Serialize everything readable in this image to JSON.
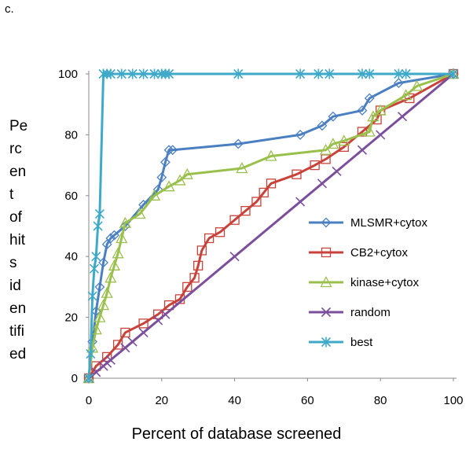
{
  "panel_label": "c.",
  "chart_data": {
    "type": "line",
    "title": "",
    "xlabel": "Percent of database screened",
    "ylabel": "Percent of hits identified",
    "ylabel_lines": [
      "Pe",
      "rc",
      "en",
      "t",
      "of",
      "hit",
      "s",
      "id",
      "en",
      "tifi",
      "ed"
    ],
    "xlim": [
      0,
      100
    ],
    "ylim": [
      0,
      100
    ],
    "xticks": [
      0,
      20,
      40,
      60,
      80,
      100
    ],
    "yticks": [
      0,
      20,
      40,
      60,
      80,
      100
    ],
    "grid": false,
    "legend_position": "right",
    "series": [
      {
        "name": "MLSMR+cytox",
        "color": "#4a7fc1",
        "marker": "diamond",
        "x": [
          0,
          1,
          2,
          3,
          4,
          5,
          6,
          7,
          10,
          15,
          19,
          20,
          21,
          22,
          23,
          41,
          58,
          64,
          67,
          75,
          77,
          85,
          100
        ],
        "y": [
          0,
          12,
          22,
          30,
          38,
          44,
          46,
          47,
          50,
          57,
          62,
          66,
          71,
          75,
          75,
          77,
          80,
          83,
          86,
          88,
          92,
          97,
          100
        ]
      },
      {
        "name": "CB2+cytox",
        "color": "#c8423a",
        "marker": "square",
        "x": [
          0,
          2,
          5,
          8,
          10,
          15,
          19,
          22,
          25,
          27,
          29,
          30,
          31,
          33,
          36,
          40,
          43,
          46,
          48,
          50,
          57,
          62,
          65,
          70,
          75,
          79,
          80,
          88,
          100
        ],
        "y": [
          0,
          4,
          7,
          11,
          15,
          18,
          21,
          24,
          26,
          30,
          33,
          37,
          42,
          46,
          48,
          52,
          55,
          58,
          61,
          64,
          67,
          70,
          72,
          76,
          81,
          85,
          88,
          92,
          100
        ]
      },
      {
        "name": "kinase+cytox",
        "color": "#9ac04c",
        "marker": "triangle",
        "x": [
          0,
          1,
          2,
          3,
          4,
          5,
          6,
          7,
          8,
          9,
          10,
          14,
          18,
          22,
          25,
          27,
          42,
          50,
          65,
          67,
          70,
          77,
          78,
          80,
          87,
          90,
          100
        ],
        "y": [
          0,
          10,
          16,
          20,
          24,
          28,
          33,
          37,
          41,
          46,
          51,
          54,
          60,
          63,
          65,
          67,
          69,
          73,
          75,
          77,
          78,
          81,
          86,
          88,
          93,
          96,
          100
        ]
      },
      {
        "name": "random",
        "color": "#7b4f9c",
        "marker": "x",
        "x": [
          0,
          2,
          4,
          5,
          6,
          10,
          12,
          15,
          19,
          21,
          40,
          58,
          64,
          68,
          75,
          80,
          86,
          100
        ],
        "y": [
          0,
          2,
          4,
          5,
          6,
          10,
          12,
          15,
          19,
          21,
          40,
          58,
          64,
          68,
          75,
          80,
          86,
          100
        ]
      },
      {
        "name": "best",
        "color": "#3fa9c9",
        "marker": "star",
        "x": [
          0,
          0.5,
          1,
          1.5,
          2,
          2.5,
          3,
          4,
          5,
          6,
          9,
          12,
          15,
          18,
          20,
          21,
          22,
          41,
          58,
          63,
          66,
          75,
          77,
          85,
          87,
          100
        ],
        "y": [
          0,
          8,
          27,
          36,
          40,
          50,
          54,
          100,
          100,
          100,
          100,
          100,
          100,
          100,
          100,
          100,
          100,
          100,
          100,
          100,
          100,
          100,
          100,
          100,
          100,
          100
        ]
      }
    ]
  }
}
